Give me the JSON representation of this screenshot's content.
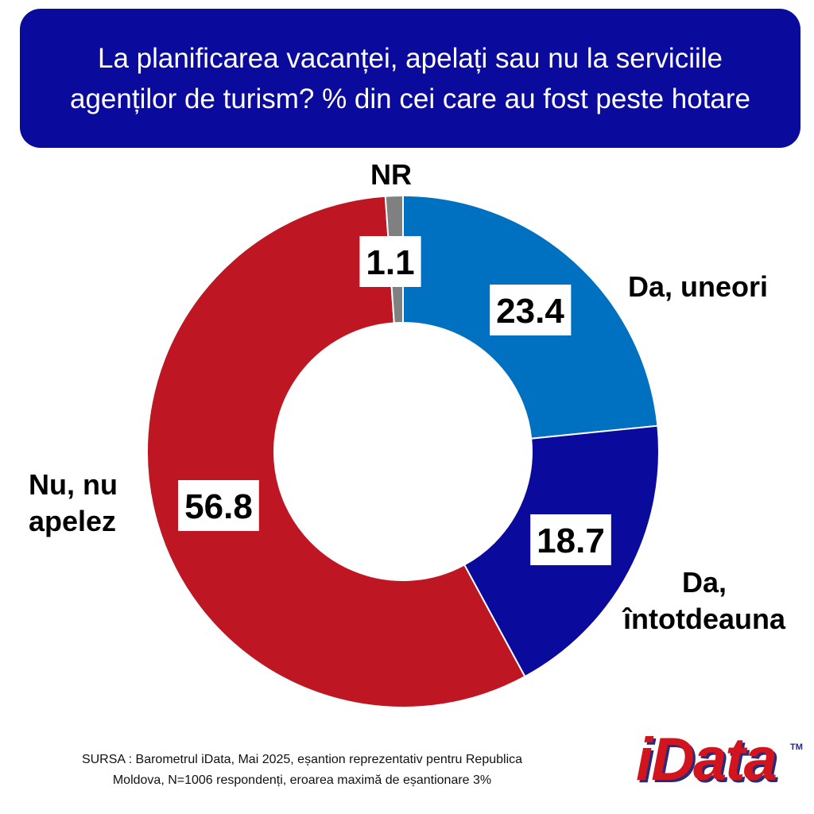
{
  "title": "La planificarea vacanței, apelați sau nu la serviciile agenților de turism? % din cei care au fost peste hotare",
  "chart_data": {
    "type": "pie",
    "variant": "donut",
    "slices": [
      {
        "label_lines": [
          "Da, uneori"
        ],
        "value": 23.4,
        "value_label": "23.4",
        "color": "#0070c0"
      },
      {
        "label_lines": [
          "Da,",
          "întotdeauna"
        ],
        "value": 18.7,
        "value_label": "18.7",
        "color": "#0a0a9c"
      },
      {
        "label_lines": [
          "Nu, nu",
          "apelez"
        ],
        "value": 56.8,
        "value_label": "56.8",
        "color": "#be1622"
      },
      {
        "label_lines": [
          "NR"
        ],
        "value": 1.1,
        "value_label": "1.1",
        "color": "#808080"
      }
    ]
  },
  "source": {
    "line1": "SURSA : Barometrul iData, Mai 2025, eșantion reprezentativ pentru Republica",
    "line2": "Moldova, N=1006 respondenți, eroarea maximă de eșantionare 3%"
  },
  "logo": {
    "text": "iData",
    "tm": "TM"
  }
}
